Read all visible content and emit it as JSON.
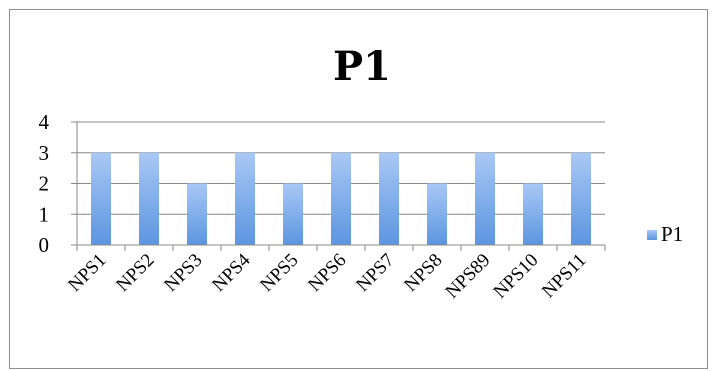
{
  "chart_data": {
    "type": "bar",
    "title": "P1",
    "categories": [
      "NPS1",
      "NPS2",
      "NPS3",
      "NPS4",
      "NPS5",
      "NPS6",
      "NPS7",
      "NPS8",
      "NPS89",
      "NPS10",
      "NPS11"
    ],
    "series": [
      {
        "name": "P1",
        "values": [
          3,
          3,
          2,
          3,
          2,
          3,
          3,
          2,
          3,
          2,
          3
        ]
      }
    ],
    "yticks": [
      0,
      1,
      2,
      3,
      4
    ],
    "ylim": [
      0,
      4
    ],
    "grid": true,
    "legend": "right",
    "colors": {
      "bar_top": "#a9c8f5",
      "bar_bottom": "#5b95e0",
      "grid": "#888888",
      "axis": "#888888"
    }
  }
}
